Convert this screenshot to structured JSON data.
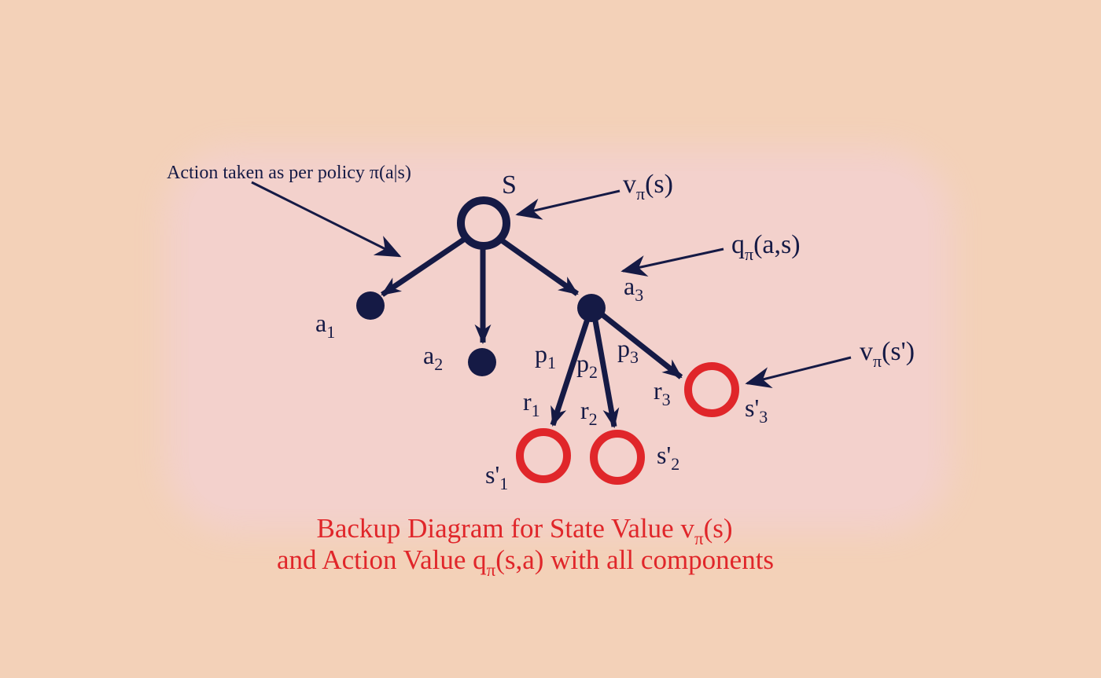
{
  "colors": {
    "navy": "#151a45",
    "red": "#e0262a",
    "background": "#f3d1b8",
    "panel": "#f3d1cc"
  },
  "diagram": {
    "annotation_policy": "Action taken as per policy π(a|s)",
    "root_label": "S",
    "v_state": {
      "main": "v",
      "sub": "π",
      "rest": "(s)"
    },
    "q_action": {
      "main": "q",
      "sub": "π",
      "rest": "(a,s)"
    },
    "v_next_state": {
      "main": "v",
      "sub": "π",
      "rest": "(s')"
    },
    "actions": [
      {
        "main": "a",
        "sub": "1"
      },
      {
        "main": "a",
        "sub": "2"
      },
      {
        "main": "a",
        "sub": "3"
      }
    ],
    "probabilities": [
      {
        "main": "p",
        "sub": "1"
      },
      {
        "main": "p",
        "sub": "2"
      },
      {
        "main": "p",
        "sub": "3"
      }
    ],
    "rewards": [
      {
        "main": "r",
        "sub": "1"
      },
      {
        "main": "r",
        "sub": "2"
      },
      {
        "main": "r",
        "sub": "3"
      }
    ],
    "next_states": [
      {
        "main": "s'",
        "sub": "1"
      },
      {
        "main": "s'",
        "sub": "2"
      },
      {
        "main": "s'",
        "sub": "3"
      }
    ]
  },
  "caption": {
    "line1": {
      "text": "Backup Diagram for State Value v",
      "sub": "π",
      "rest": "(s)"
    },
    "line2": {
      "text": "and Action Value q",
      "sub": "π",
      "rest": "(s,a) with all components"
    }
  }
}
